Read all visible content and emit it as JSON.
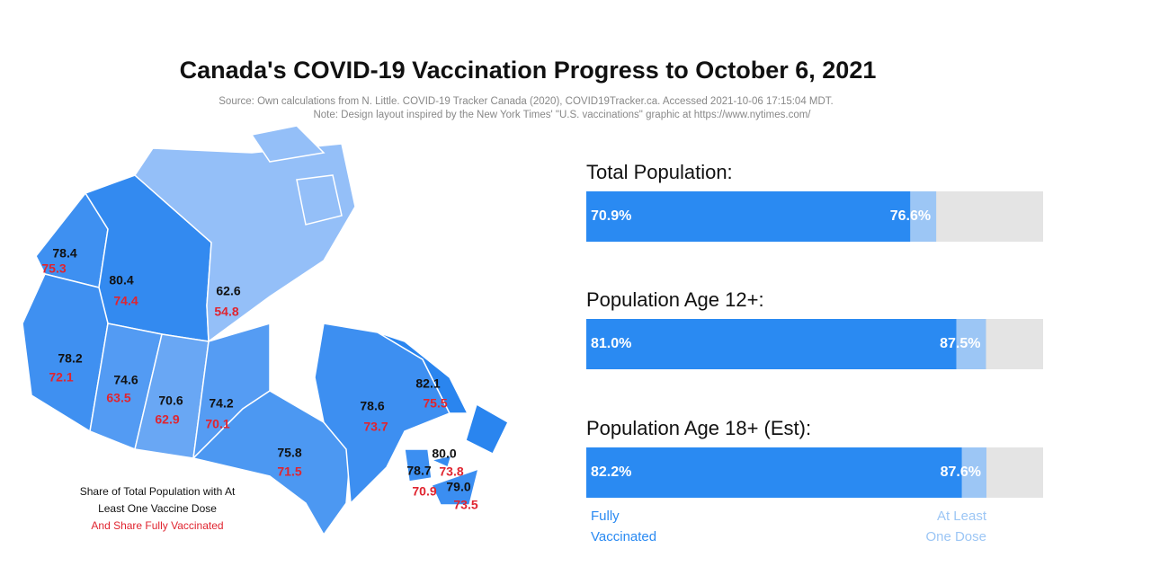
{
  "title": "Canada's COVID-19 Vaccination Progress to October 6, 2021",
  "source": "Source: Own calculations from N. Little. COVID-19 Tracker Canada (2020), COVID19Tracker.ca. Accessed 2021-10-06 17:15:04 MDT.",
  "note": "Note: Design layout inspired by the New York Times' \"U.S. vaccinations\" graphic at https://www.nytimes.com/",
  "chart_data": [
    {
      "type": "map",
      "series": [
        {
          "name": "Share of Total Population with At Least One Vaccine Dose",
          "color": "#111111",
          "values": [
            78.4,
            80.4,
            62.6,
            78.2,
            74.6,
            70.6,
            74.2,
            75.8,
            78.6,
            82.1,
            80.0,
            78.7,
            79.0
          ],
          "value_labels": [
            "78.4",
            "80.4",
            "62.6",
            "78.2",
            "74.6",
            "70.6",
            "74.2",
            "75.8",
            "78.6",
            "82.1",
            "80.0",
            "78.7",
            "79.0"
          ]
        },
        {
          "name": "And Share Fully Vaccinated",
          "color": "#e0242f",
          "values": [
            75.3,
            74.4,
            54.8,
            72.1,
            63.5,
            62.9,
            70.1,
            71.5,
            73.7,
            75.5,
            73.8,
            70.9,
            73.5
          ],
          "value_labels": [
            "75.3",
            "74.4",
            "54.8",
            "72.1",
            "63.5",
            "62.9",
            "70.1",
            "71.5",
            "73.7",
            "75.5",
            "73.8",
            "70.9",
            "73.5"
          ]
        }
      ]
    },
    {
      "type": "bar",
      "orientation": "horizontal",
      "categories": [
        "Total Population:",
        "Population Age 12+:",
        "Population Age 18+ (Est):"
      ],
      "xlim": [
        0,
        100
      ],
      "track_color": "#e4e4e4",
      "series": [
        {
          "name": "Fully Vaccinated",
          "color": "#2a8af2",
          "values": [
            70.9,
            81.0,
            82.2
          ],
          "value_labels": [
            "70.9%",
            "81.0%",
            "82.2%"
          ]
        },
        {
          "name": "At Least One Dose",
          "color": "#9cc6f5",
          "values": [
            76.6,
            87.5,
            87.6
          ],
          "value_labels": [
            "76.6%",
            "87.5%",
            "87.6%"
          ]
        }
      ]
    }
  ]
}
